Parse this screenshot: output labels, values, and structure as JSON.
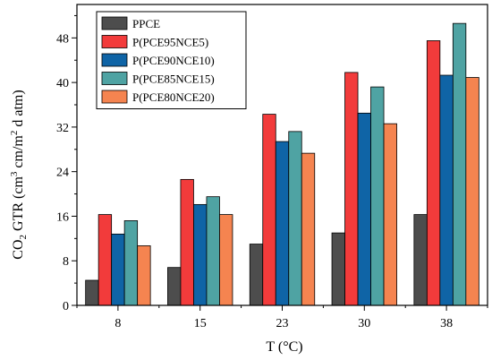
{
  "chart_data": {
    "type": "bar",
    "categories": [
      "8",
      "15",
      "23",
      "30",
      "38"
    ],
    "series": [
      {
        "name": "PPCE",
        "color": "#4d4d4d",
        "values": [
          4.5,
          6.8,
          11.0,
          13.0,
          16.3
        ]
      },
      {
        "name": "P(PCE95NCE5)",
        "color": "#f23b3b",
        "values": [
          16.3,
          22.6,
          34.3,
          41.8,
          47.5
        ]
      },
      {
        "name": "P(PCE90NCE10)",
        "color": "#0f64a6",
        "values": [
          12.8,
          18.1,
          29.4,
          34.5,
          41.3
        ]
      },
      {
        "name": "P(PCE85NCE15)",
        "color": "#4fa3a3",
        "values": [
          15.2,
          19.5,
          31.2,
          39.2,
          50.6
        ]
      },
      {
        "name": "P(PCE80NCE20)",
        "color": "#f58450",
        "values": [
          10.7,
          16.3,
          27.3,
          32.6,
          40.9
        ]
      }
    ],
    "xlabel": "T (°C)",
    "ylabel": {
      "base": "CO",
      "base_sub": "2",
      "main": " GTR (cm",
      "sup1": "3",
      "mid": " cm/m",
      "sup2": "2",
      "tail": " d atm)"
    },
    "ylim": [
      0,
      54
    ],
    "yticks": [
      0,
      8,
      16,
      24,
      32,
      40,
      48
    ],
    "legend_position": "top-left",
    "grid": false
  }
}
